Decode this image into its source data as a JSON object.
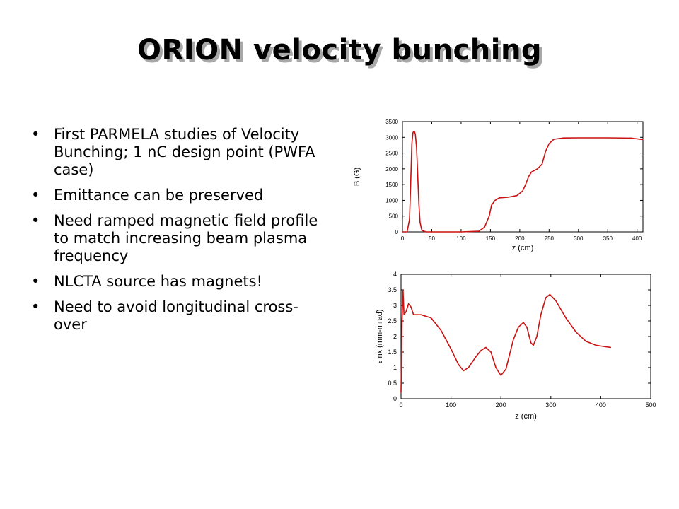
{
  "slide": {
    "title": "ORION velocity bunching",
    "bullets": [
      "First PARMELA studies of Velocity Bunching; 1 nC design point (PWFA case)",
      "Emittance can be preserved",
      "Need ramped magnetic field profile to match increasing beam plasma frequency",
      "NLCTA source has magnets!",
      "Need to avoid longitudinal cross-over"
    ],
    "bullet_symbol": "•"
  },
  "colors": {
    "line": "#cc1111",
    "axis": "#000000"
  },
  "chart_data": [
    {
      "type": "line",
      "xlabel": "z (cm)",
      "ylabel": "B (G)",
      "xlim": [
        0,
        410
      ],
      "ylim": [
        0,
        3500
      ],
      "xticks": [
        0,
        50,
        100,
        150,
        200,
        250,
        300,
        350,
        400
      ],
      "yticks": [
        0,
        500,
        1000,
        1500,
        2000,
        2500,
        3000,
        3500
      ],
      "series": [
        {
          "values": [
            [
              0,
              0
            ],
            [
              8,
              0
            ],
            [
              12,
              400
            ],
            [
              14,
              1500
            ],
            [
              16,
              2800
            ],
            [
              18,
              3150
            ],
            [
              20,
              3200
            ],
            [
              22,
              3100
            ],
            [
              24,
              2700
            ],
            [
              26,
              1800
            ],
            [
              28,
              900
            ],
            [
              30,
              300
            ],
            [
              33,
              50
            ],
            [
              40,
              0
            ],
            [
              100,
              0
            ],
            [
              130,
              20
            ],
            [
              140,
              150
            ],
            [
              148,
              500
            ],
            [
              152,
              850
            ],
            [
              158,
              1000
            ],
            [
              165,
              1080
            ],
            [
              180,
              1100
            ],
            [
              195,
              1150
            ],
            [
              205,
              1300
            ],
            [
              210,
              1500
            ],
            [
              215,
              1750
            ],
            [
              220,
              1900
            ],
            [
              230,
              2000
            ],
            [
              238,
              2150
            ],
            [
              244,
              2550
            ],
            [
              250,
              2800
            ],
            [
              258,
              2940
            ],
            [
              275,
              2980
            ],
            [
              300,
              2985
            ],
            [
              350,
              2985
            ],
            [
              390,
              2975
            ],
            [
              410,
              2930
            ]
          ]
        }
      ]
    },
    {
      "type": "line",
      "xlabel": "z (cm)",
      "ylabel": "ε nx (mm-mrad)",
      "xlim": [
        0,
        500
      ],
      "ylim": [
        0,
        4
      ],
      "xticks": [
        0,
        100,
        200,
        300,
        400,
        500
      ],
      "yticks": [
        0,
        0.5,
        1,
        1.5,
        2,
        2.5,
        3,
        3.5,
        4
      ],
      "series": [
        {
          "values": [
            [
              0,
              0.2
            ],
            [
              2,
              2.5
            ],
            [
              4,
              3.5
            ],
            [
              6,
              2.7
            ],
            [
              10,
              2.8
            ],
            [
              15,
              3.05
            ],
            [
              20,
              2.95
            ],
            [
              25,
              2.7
            ],
            [
              40,
              2.7
            ],
            [
              60,
              2.6
            ],
            [
              80,
              2.2
            ],
            [
              100,
              1.6
            ],
            [
              115,
              1.1
            ],
            [
              125,
              0.9
            ],
            [
              135,
              1.0
            ],
            [
              150,
              1.35
            ],
            [
              160,
              1.55
            ],
            [
              170,
              1.65
            ],
            [
              180,
              1.5
            ],
            [
              190,
              1.0
            ],
            [
              200,
              0.75
            ],
            [
              210,
              0.95
            ],
            [
              225,
              1.9
            ],
            [
              235,
              2.3
            ],
            [
              245,
              2.45
            ],
            [
              252,
              2.3
            ],
            [
              260,
              1.8
            ],
            [
              265,
              1.72
            ],
            [
              272,
              2.0
            ],
            [
              280,
              2.7
            ],
            [
              290,
              3.25
            ],
            [
              298,
              3.35
            ],
            [
              310,
              3.15
            ],
            [
              330,
              2.6
            ],
            [
              350,
              2.15
            ],
            [
              370,
              1.85
            ],
            [
              390,
              1.72
            ],
            [
              410,
              1.67
            ],
            [
              420,
              1.65
            ]
          ]
        }
      ]
    }
  ]
}
